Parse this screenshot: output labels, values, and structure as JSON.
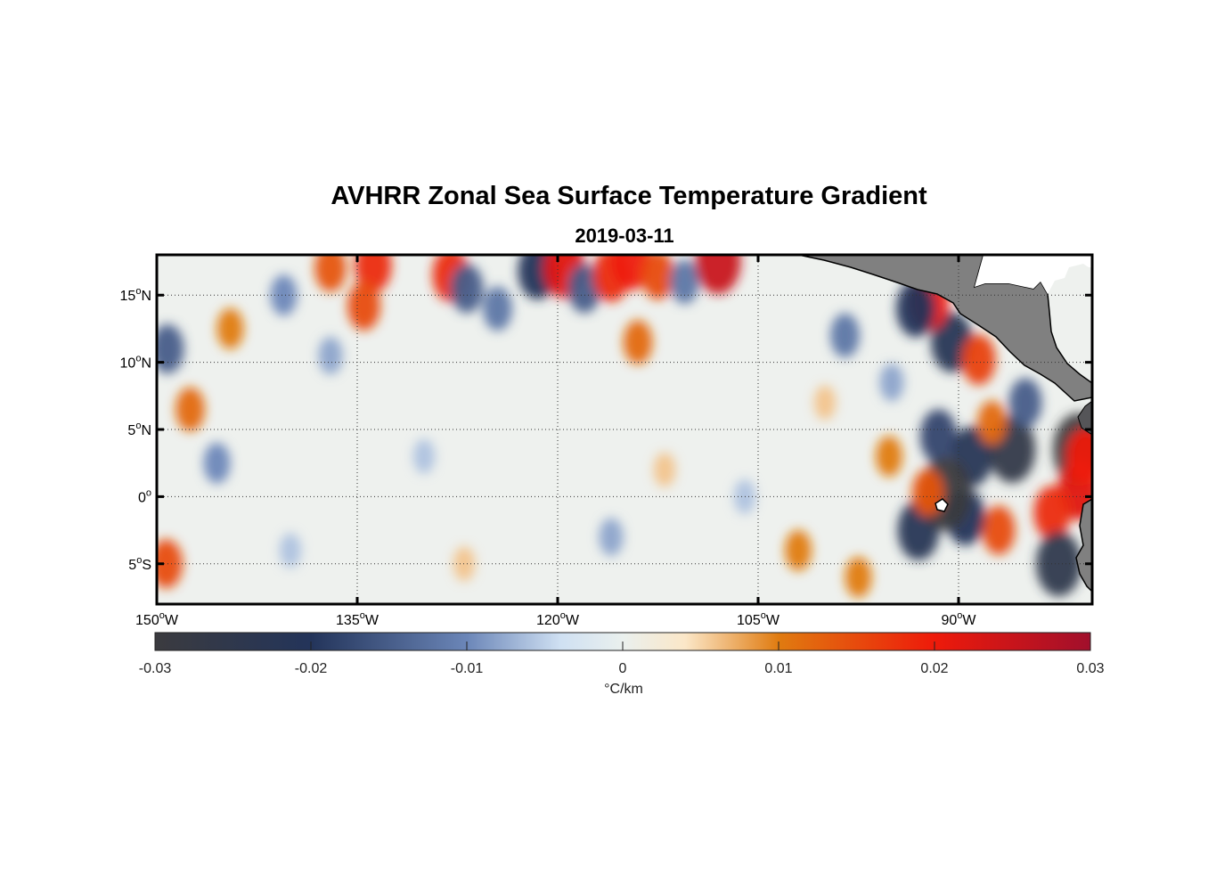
{
  "chart_data": {
    "type": "heatmap",
    "title": "AVHRR Zonal Sea Surface Temperature Gradient",
    "subtitle": "2019-03-11",
    "x_range_lon": [
      -150,
      -80
    ],
    "y_range_lat": [
      -8,
      18
    ],
    "lon_ticks": [
      -150,
      -135,
      -120,
      -105,
      -90
    ],
    "lat_ticks": [
      15,
      10,
      5,
      0,
      -5
    ],
    "lon_tick_labels": [
      {
        "deg": "150",
        "hemi": "W"
      },
      {
        "deg": "135",
        "hemi": "W"
      },
      {
        "deg": "120",
        "hemi": "W"
      },
      {
        "deg": "105",
        "hemi": "W"
      },
      {
        "deg": "90",
        "hemi": "W"
      }
    ],
    "lat_tick_labels": [
      {
        "deg": "15",
        "hemi": "N"
      },
      {
        "deg": "10",
        "hemi": "N"
      },
      {
        "deg": "5",
        "hemi": "N"
      },
      {
        "deg": "0",
        "hemi": ""
      },
      {
        "deg": "5",
        "hemi": "S"
      }
    ],
    "grid": true,
    "colorbar": {
      "range": [
        -0.03,
        0.03
      ],
      "ticks": [
        -0.03,
        -0.02,
        -0.01,
        0,
        0.01,
        0.02,
        0.03
      ],
      "tick_labels": [
        "-0.03",
        "-0.02",
        "-0.01",
        "0",
        "0.01",
        "0.02",
        "0.03"
      ],
      "label": "°C/km",
      "colors": [
        {
          "v": -0.03,
          "c": "#3b3b3f"
        },
        {
          "v": -0.02,
          "c": "#23345a"
        },
        {
          "v": -0.01,
          "c": "#6b86b8"
        },
        {
          "v": -0.004,
          "c": "#cfe0f2"
        },
        {
          "v": 0,
          "c": "#eaf0ee"
        },
        {
          "v": 0.004,
          "c": "#fbe7c8"
        },
        {
          "v": 0.01,
          "c": "#e07b10"
        },
        {
          "v": 0.02,
          "c": "#ee1a0a"
        },
        {
          "v": 0.03,
          "c": "#a10f2c"
        }
      ]
    },
    "land_color": "#808080",
    "features": [
      {
        "lon": -91.5,
        "lat": 4.5,
        "value": -0.018
      },
      {
        "lon": -90.5,
        "lat": 11.5,
        "value": -0.022
      },
      {
        "lon": -88.5,
        "lat": 10.2,
        "value": 0.016
      },
      {
        "lon": -92.2,
        "lat": 14.5,
        "value": 0.02
      },
      {
        "lon": -93.2,
        "lat": 14.0,
        "value": -0.02
      },
      {
        "lon": -89.0,
        "lat": 3.0,
        "value": -0.022
      },
      {
        "lon": -86.0,
        "lat": 3.5,
        "value": -0.026
      },
      {
        "lon": -81.0,
        "lat": 3.5,
        "value": -0.03
      },
      {
        "lon": -81.0,
        "lat": 0.5,
        "value": 0.022
      },
      {
        "lon": -80.5,
        "lat": 3.0,
        "value": 0.02
      },
      {
        "lon": -83.0,
        "lat": -1.2,
        "value": 0.018
      },
      {
        "lon": -87.0,
        "lat": -2.5,
        "value": 0.015
      },
      {
        "lon": -89.5,
        "lat": -1.5,
        "value": -0.02
      },
      {
        "lon": -93.0,
        "lat": -2.5,
        "value": -0.022
      },
      {
        "lon": -91.0,
        "lat": 0.2,
        "value": -0.03
      },
      {
        "lon": -92.3,
        "lat": 0.3,
        "value": 0.014
      },
      {
        "lon": -95.2,
        "lat": 3.0,
        "value": 0.01
      },
      {
        "lon": -82.5,
        "lat": -5.0,
        "value": -0.025
      },
      {
        "lon": -85.0,
        "lat": 7.0,
        "value": -0.015
      },
      {
        "lon": -87.5,
        "lat": 5.5,
        "value": 0.012
      },
      {
        "lon": -98.5,
        "lat": 12.0,
        "value": -0.012
      },
      {
        "lon": -149.2,
        "lat": 11.0,
        "value": -0.015
      },
      {
        "lon": -147.5,
        "lat": 6.5,
        "value": 0.012
      },
      {
        "lon": -149.3,
        "lat": -5.0,
        "value": 0.015
      },
      {
        "lon": -133.8,
        "lat": 17.2,
        "value": 0.018
      },
      {
        "lon": -134.5,
        "lat": 14.2,
        "value": 0.015
      },
      {
        "lon": -128.0,
        "lat": 16.5,
        "value": 0.018
      },
      {
        "lon": -126.8,
        "lat": 15.5,
        "value": -0.015
      },
      {
        "lon": -121.5,
        "lat": 16.8,
        "value": -0.02
      },
      {
        "lon": -119.5,
        "lat": 17.0,
        "value": 0.022
      },
      {
        "lon": -118.0,
        "lat": 15.5,
        "value": -0.015
      },
      {
        "lon": -116.0,
        "lat": 16.5,
        "value": 0.018
      },
      {
        "lon": -114.5,
        "lat": 17.5,
        "value": 0.02
      },
      {
        "lon": -112.5,
        "lat": 16.5,
        "value": 0.015
      },
      {
        "lon": -110.5,
        "lat": 16.0,
        "value": -0.012
      },
      {
        "lon": -114.0,
        "lat": 11.5,
        "value": 0.012
      },
      {
        "lon": -108.0,
        "lat": 17.5,
        "value": 0.025
      },
      {
        "lon": -124.5,
        "lat": 14.0,
        "value": -0.012
      },
      {
        "lon": -137.0,
        "lat": 17.0,
        "value": 0.014
      },
      {
        "lon": -140.5,
        "lat": 15.0,
        "value": -0.01
      },
      {
        "lon": -144.5,
        "lat": 12.5,
        "value": 0.01
      },
      {
        "lon": -137.0,
        "lat": 10.5,
        "value": -0.008
      },
      {
        "lon": -145.5,
        "lat": 2.5,
        "value": -0.01
      },
      {
        "lon": -130.0,
        "lat": 3.0,
        "value": -0.006
      },
      {
        "lon": -112.0,
        "lat": 2.0,
        "value": 0.006
      },
      {
        "lon": -116.0,
        "lat": -3.0,
        "value": -0.008
      },
      {
        "lon": -102.0,
        "lat": -4.0,
        "value": 0.01
      },
      {
        "lon": -106.0,
        "lat": 0.0,
        "value": -0.006
      },
      {
        "lon": -97.5,
        "lat": -6.0,
        "value": 0.01
      },
      {
        "lon": -127.0,
        "lat": -5.0,
        "value": 0.006
      },
      {
        "lon": -140.0,
        "lat": -4.0,
        "value": -0.006
      },
      {
        "lon": -100.0,
        "lat": 7.0,
        "value": 0.006
      },
      {
        "lon": -95.0,
        "lat": 8.5,
        "value": -0.008
      }
    ]
  }
}
